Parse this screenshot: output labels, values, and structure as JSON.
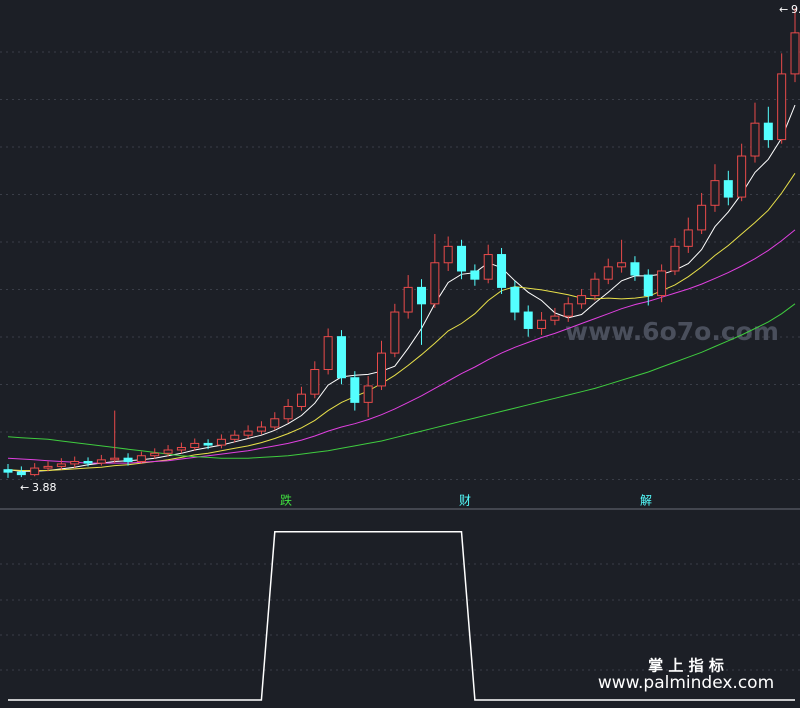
{
  "chart_data": [
    {
      "type": "candlestick",
      "open": [
        3.98,
        3.95,
        3.92,
        4.0,
        4.02,
        4.05,
        4.08,
        4.06,
        4.1,
        4.12,
        4.08,
        4.15,
        4.18,
        4.22,
        4.25,
        4.3,
        4.28,
        4.35,
        4.4,
        4.45,
        4.5,
        4.6,
        4.75,
        4.9,
        5.2,
        5.6,
        5.1,
        4.8,
        5.0,
        5.4,
        5.9,
        6.2,
        6.0,
        6.5,
        6.7,
        6.4,
        6.3,
        6.6,
        6.2,
        5.9,
        5.7,
        5.8,
        5.85,
        6.0,
        6.1,
        6.3,
        6.45,
        6.5,
        6.35,
        6.1,
        6.4,
        6.7,
        6.9,
        7.2,
        7.5,
        7.3,
        7.8,
        8.2,
        8.0,
        8.8
      ],
      "high": [
        4.05,
        4.02,
        4.06,
        4.08,
        4.12,
        4.14,
        4.13,
        4.16,
        4.7,
        4.18,
        4.2,
        4.24,
        4.28,
        4.31,
        4.36,
        4.35,
        4.41,
        4.46,
        4.52,
        4.57,
        4.68,
        4.84,
        4.99,
        5.3,
        5.7,
        5.68,
        5.18,
        5.12,
        5.55,
        6.0,
        6.35,
        6.3,
        6.85,
        6.82,
        6.78,
        6.48,
        6.72,
        6.68,
        6.28,
        5.98,
        5.9,
        5.95,
        6.08,
        6.18,
        6.38,
        6.55,
        6.78,
        6.58,
        6.42,
        6.48,
        6.8,
        7.05,
        7.35,
        7.7,
        7.62,
        7.95,
        8.45,
        8.4,
        9.05,
        9.6
      ],
      "low": [
        3.88,
        3.89,
        3.9,
        3.96,
        3.98,
        4.0,
        4.02,
        4.03,
        4.06,
        4.03,
        4.05,
        4.11,
        4.14,
        4.18,
        4.21,
        4.23,
        4.24,
        4.31,
        4.36,
        4.41,
        4.46,
        4.55,
        4.7,
        4.85,
        5.14,
        5.02,
        4.7,
        4.62,
        4.95,
        5.35,
        5.82,
        5.5,
        5.95,
        6.4,
        6.3,
        6.22,
        6.25,
        6.12,
        5.8,
        5.6,
        5.62,
        5.74,
        5.78,
        5.94,
        6.04,
        6.24,
        6.38,
        6.28,
        5.98,
        6.02,
        6.35,
        6.62,
        6.85,
        7.12,
        7.2,
        7.25,
        7.72,
        7.9,
        7.95,
        8.7
      ],
      "close": [
        3.95,
        3.92,
        4.0,
        4.02,
        4.05,
        4.08,
        4.06,
        4.1,
        4.12,
        4.08,
        4.15,
        4.18,
        4.22,
        4.25,
        4.3,
        4.28,
        4.35,
        4.4,
        4.45,
        4.5,
        4.6,
        4.75,
        4.9,
        5.2,
        5.6,
        5.1,
        4.8,
        5.0,
        5.4,
        5.9,
        6.2,
        6.0,
        6.5,
        6.7,
        6.4,
        6.3,
        6.6,
        6.2,
        5.9,
        5.7,
        5.8,
        5.85,
        6.0,
        6.1,
        6.3,
        6.45,
        6.5,
        6.35,
        6.1,
        6.4,
        6.7,
        6.9,
        7.2,
        7.5,
        7.3,
        7.8,
        8.2,
        8.0,
        8.8,
        9.3
      ],
      "up_color": "#e84a4a",
      "down_color": "#54ffff",
      "series": [
        {
          "color": "#ffffff",
          "values": [
            3.98,
            3.96,
            3.96,
            3.97,
            3.99,
            4.01,
            4.04,
            4.06,
            4.08,
            4.09,
            4.1,
            4.12,
            4.15,
            4.18,
            4.22,
            4.25,
            4.28,
            4.32,
            4.36,
            4.4,
            4.46,
            4.54,
            4.64,
            4.79,
            5.01,
            5.11,
            5.13,
            5.14,
            5.18,
            5.24,
            5.46,
            5.7,
            6.0,
            6.26,
            6.36,
            6.38,
            6.5,
            6.44,
            6.28,
            6.14,
            6.04,
            5.89,
            5.83,
            5.87,
            6.01,
            6.14,
            6.28,
            6.34,
            6.34,
            6.36,
            6.41,
            6.49,
            6.66,
            6.94,
            7.12,
            7.34,
            7.6,
            7.76,
            8.02,
            8.42
          ]
        },
        {
          "color": "#e8e04a",
          "values": [
            3.98,
            3.97,
            3.97,
            3.97,
            3.98,
            3.99,
            4.0,
            4.01,
            4.03,
            4.04,
            4.06,
            4.08,
            4.1,
            4.13,
            4.16,
            4.18,
            4.21,
            4.24,
            4.27,
            4.31,
            4.36,
            4.42,
            4.49,
            4.58,
            4.7,
            4.8,
            4.87,
            4.94,
            5.03,
            5.13,
            5.25,
            5.38,
            5.52,
            5.67,
            5.76,
            5.88,
            6.04,
            6.16,
            6.21,
            6.19,
            6.17,
            6.14,
            6.11,
            6.07,
            6.06,
            6.07,
            6.06,
            6.07,
            6.09,
            6.16,
            6.23,
            6.33,
            6.45,
            6.59,
            6.71,
            6.85,
            6.99,
            7.14,
            7.35,
            7.59
          ]
        },
        {
          "color": "#e040e0",
          "values": [
            4.12,
            4.11,
            4.1,
            4.09,
            4.08,
            4.07,
            4.06,
            4.06,
            4.06,
            4.06,
            4.07,
            4.08,
            4.09,
            4.11,
            4.13,
            4.15,
            4.17,
            4.19,
            4.21,
            4.24,
            4.27,
            4.3,
            4.34,
            4.39,
            4.45,
            4.5,
            4.54,
            4.59,
            4.65,
            4.72,
            4.8,
            4.88,
            4.97,
            5.06,
            5.15,
            5.23,
            5.32,
            5.4,
            5.47,
            5.53,
            5.59,
            5.64,
            5.7,
            5.76,
            5.82,
            5.88,
            5.94,
            5.99,
            6.03,
            6.08,
            6.13,
            6.18,
            6.24,
            6.31,
            6.38,
            6.46,
            6.55,
            6.65,
            6.77,
            6.9
          ]
        },
        {
          "color": "#3fcc3f",
          "values": [
            4.38,
            4.37,
            4.36,
            4.35,
            4.33,
            4.31,
            4.29,
            4.27,
            4.25,
            4.23,
            4.21,
            4.19,
            4.17,
            4.15,
            4.14,
            4.13,
            4.12,
            4.12,
            4.12,
            4.13,
            4.14,
            4.15,
            4.17,
            4.19,
            4.21,
            4.24,
            4.27,
            4.3,
            4.33,
            4.37,
            4.41,
            4.45,
            4.49,
            4.53,
            4.57,
            4.61,
            4.65,
            4.69,
            4.73,
            4.77,
            4.81,
            4.85,
            4.89,
            4.93,
            4.97,
            5.02,
            5.07,
            5.12,
            5.17,
            5.23,
            5.29,
            5.35,
            5.41,
            5.48,
            5.55,
            5.62,
            5.7,
            5.78,
            5.88,
            6.0
          ]
        }
      ],
      "ylim": [
        3.55,
        9.7
      ],
      "annotations": [
        "跌",
        "财",
        "解"
      ],
      "watermark": "www.6o7o.com"
    },
    {
      "type": "step",
      "values": [
        0,
        0,
        0,
        0,
        0,
        0,
        0,
        0,
        0,
        0,
        0,
        0,
        0,
        0,
        0,
        0,
        0,
        0,
        0,
        0,
        1,
        1,
        1,
        1,
        1,
        1,
        1,
        1,
        1,
        1,
        1,
        1,
        1,
        1,
        1,
        0,
        0,
        0,
        0,
        0,
        0,
        0,
        0,
        0,
        0,
        0,
        0,
        0,
        0,
        0,
        0,
        0,
        0,
        0,
        0,
        0,
        0,
        0,
        0,
        0
      ],
      "color": "#ffffff",
      "ylim": [
        0,
        1.1
      ],
      "brand": "掌 上 指 标",
      "site": "www.palmindex.com"
    }
  ]
}
